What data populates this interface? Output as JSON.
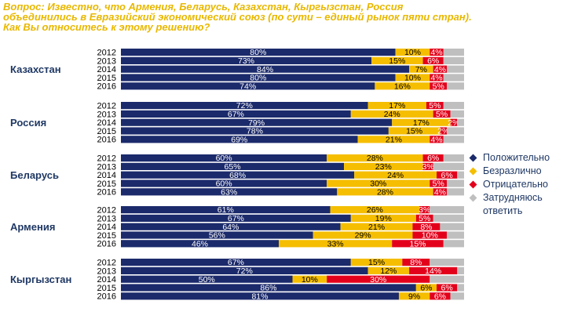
{
  "title": "Вопрос: Известно, что Армения, Беларусь, Казахстан, Кыргызстан, Россия объединились в Евразийский экономический союз (по сути – единый рынок пяти стран). Как Вы относитесь к этому решению?",
  "colors": {
    "positive": "#1B2A6B",
    "indifferent": "#F5BE00",
    "negative": "#E3001B",
    "undecided": "#BFBFBF",
    "label_dark": "#1F3864",
    "title": "#E8B800"
  },
  "legend": [
    {
      "key": "positive",
      "label": "Положительно"
    },
    {
      "key": "indifferent",
      "label": "Безразлично"
    },
    {
      "key": "negative",
      "label": "Отрицательно"
    },
    {
      "key": "undecided",
      "label": "Затрудняюсь ответить"
    }
  ],
  "chart_data": {
    "type": "bar",
    "orientation": "horizontal",
    "stacked": true,
    "title": "Вопрос: Известно, что Армения, Беларусь, Казахстан, Кыргызстан, Россия объединились в Евразийский экономический союз (по сути – единый рынок пяти стран). Как Вы относитесь к этому решению?",
    "series_names": [
      "Положительно",
      "Безразлично",
      "Отрицательно",
      "Затрудняюсь ответить"
    ],
    "xlim": [
      0,
      100
    ],
    "unit": "%",
    "groups": [
      {
        "country": "Казахстан",
        "rows": [
          {
            "year": "2012",
            "positive": 80,
            "indifferent": 10,
            "negative": 4,
            "undecided": 6,
            "labels": [
              "80%",
              "10%",
              "4%"
            ]
          },
          {
            "year": "2013",
            "positive": 73,
            "indifferent": 15,
            "negative": 6,
            "undecided": 6,
            "labels": [
              "73%",
              "15%",
              "6%"
            ]
          },
          {
            "year": "2014",
            "positive": 84,
            "indifferent": 7,
            "negative": 4,
            "undecided": 5,
            "labels": [
              "84%",
              "7%",
              "4%"
            ]
          },
          {
            "year": "2015",
            "positive": 80,
            "indifferent": 10,
            "negative": 4,
            "undecided": 6,
            "labels": [
              "80%",
              "10%",
              "4%"
            ]
          },
          {
            "year": "2016",
            "positive": 74,
            "indifferent": 16,
            "negative": 5,
            "undecided": 5,
            "labels": [
              "74%",
              "16%",
              "5%"
            ]
          }
        ]
      },
      {
        "country": "Россия",
        "rows": [
          {
            "year": "2012",
            "positive": 72,
            "indifferent": 17,
            "negative": 5,
            "undecided": 6,
            "labels": [
              "72%",
              "17%",
              "5%"
            ]
          },
          {
            "year": "2013",
            "positive": 67,
            "indifferent": 24,
            "negative": 5,
            "undecided": 4,
            "labels": [
              "67%",
              "24%",
              "5%"
            ]
          },
          {
            "year": "2014",
            "positive": 79,
            "indifferent": 17,
            "negative": 2,
            "undecided": 2,
            "labels": [
              "79%",
              "17%",
              "2%"
            ]
          },
          {
            "year": "2015",
            "positive": 78,
            "indifferent": 15,
            "negative": 2,
            "undecided": 5,
            "labels": [
              "78%",
              "15%",
              "2%"
            ]
          },
          {
            "year": "2016",
            "positive": 69,
            "indifferent": 21,
            "negative": 4,
            "undecided": 6,
            "labels": [
              "69%",
              "21%",
              "4%"
            ]
          }
        ]
      },
      {
        "country": "Беларусь",
        "rows": [
          {
            "year": "2012",
            "positive": 60,
            "indifferent": 28,
            "negative": 6,
            "undecided": 6,
            "labels": [
              "60%",
              "28%",
              "6%"
            ]
          },
          {
            "year": "2013",
            "positive": 65,
            "indifferent": 23,
            "negative": 3,
            "undecided": 9,
            "labels": [
              "65%",
              "23%",
              "3%"
            ]
          },
          {
            "year": "2014",
            "positive": 68,
            "indifferent": 24,
            "negative": 6,
            "undecided": 2,
            "labels": [
              "68%",
              "24%",
              "6%"
            ]
          },
          {
            "year": "2015",
            "positive": 60,
            "indifferent": 30,
            "negative": 5,
            "undecided": 5,
            "labels": [
              "60%",
              "30%",
              "5%"
            ]
          },
          {
            "year": "2016",
            "positive": 63,
            "indifferent": 28,
            "negative": 4,
            "undecided": 5,
            "labels": [
              "63%",
              "28%",
              "4%"
            ]
          }
        ]
      },
      {
        "country": "Армения",
        "rows": [
          {
            "year": "2012",
            "positive": 61,
            "indifferent": 26,
            "negative": 3,
            "undecided": 10,
            "labels": [
              "61%",
              "26%",
              "3%"
            ]
          },
          {
            "year": "2013",
            "positive": 67,
            "indifferent": 19,
            "negative": 5,
            "undecided": 9,
            "labels": [
              "67%",
              "19%",
              "5%"
            ]
          },
          {
            "year": "2014",
            "positive": 64,
            "indifferent": 21,
            "negative": 8,
            "undecided": 7,
            "labels": [
              "64%",
              "21%",
              "8%"
            ]
          },
          {
            "year": "2015",
            "positive": 56,
            "indifferent": 29,
            "negative": 10,
            "undecided": 5,
            "labels": [
              "56%",
              "29%",
              "10%"
            ]
          },
          {
            "year": "2016",
            "positive": 46,
            "indifferent": 33,
            "negative": 15,
            "undecided": 6,
            "labels": [
              "46%",
              "33%",
              "15%"
            ]
          }
        ]
      },
      {
        "country": "Кыргызстан",
        "rows": [
          {
            "year": "2012",
            "positive": 67,
            "indifferent": 15,
            "negative": 8,
            "undecided": 10,
            "labels": [
              "67%",
              "15%",
              "8%"
            ]
          },
          {
            "year": "2013",
            "positive": 72,
            "indifferent": 12,
            "negative": 14,
            "undecided": 2,
            "labels": [
              "72%",
              "12%",
              "14%"
            ]
          },
          {
            "year": "2014",
            "positive": 50,
            "indifferent": 10,
            "negative": 30,
            "undecided": 10,
            "labels": [
              "50%",
              "10%",
              "30%"
            ]
          },
          {
            "year": "2015",
            "positive": 86,
            "indifferent": 6,
            "negative": 6,
            "undecided": 2,
            "labels": [
              "86%",
              "6%",
              "6%"
            ]
          },
          {
            "year": "2016",
            "positive": 81,
            "indifferent": 9,
            "negative": 6,
            "undecided": 4,
            "labels": [
              "81%",
              "9%",
              "6%"
            ]
          }
        ]
      }
    ]
  }
}
